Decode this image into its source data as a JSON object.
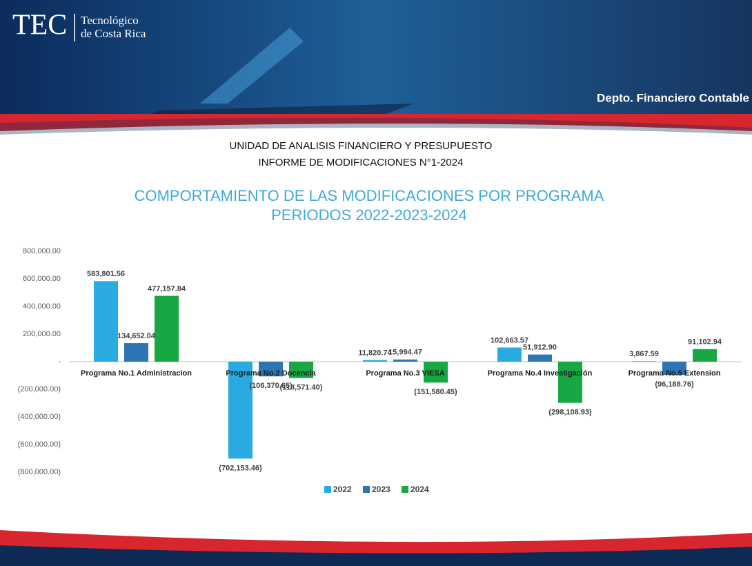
{
  "header": {
    "logo": "TEC",
    "institution_line1": "Tecnológico",
    "institution_line2": "de Costa Rica",
    "department": "Depto. Financiero Contable",
    "report_unit": "UNIDAD DE ANALISIS  FINANCIERO Y PRESUPUESTO",
    "report_name": "INFORME DE MODIFICACIONES N°1-2024"
  },
  "chart_data": {
    "type": "bar",
    "title": "COMPORTAMIENTO DE LAS MODIFICACIONES POR PROGRAMA",
    "subtitle": "PERIODOS 2022-2023-2024",
    "categories": [
      "Programa No.1 Administracion",
      "Programa No.2 Docencia",
      "Programa No.3 VIESA",
      "Programa No.4 Investigación",
      "Programa No.5 Extension"
    ],
    "series": [
      {
        "name": "2022",
        "color": "#29abe2",
        "values": [
          583801.56,
          -702153.46,
          11820.74,
          102663.57,
          3867.59
        ],
        "value_labels": [
          "583,801.56",
          "(702,153.46)",
          "11,820.74",
          "102,663.57",
          "3,867.59"
        ]
      },
      {
        "name": "2023",
        "color": "#2e75b6",
        "values": [
          134652.04,
          -106370.65,
          15994.47,
          51912.9,
          -96188.76
        ],
        "value_labels": [
          "134,652.04",
          "(106,370.65)",
          "15,994.47",
          "51,912.90",
          "(96,188.76)"
        ]
      },
      {
        "name": "2024",
        "color": "#17a844",
        "values": [
          477157.84,
          -118571.4,
          -151580.45,
          -298108.93,
          91102.94
        ],
        "value_labels": [
          "477,157.84",
          "(118,571.40)",
          "(151,580.45)",
          "(298,108.93)",
          "91,102.94"
        ]
      }
    ],
    "ylim": [
      -800000,
      800000
    ],
    "yticks": [
      {
        "value": -800000,
        "label": "(800,000.00)"
      },
      {
        "value": -600000,
        "label": "(600,000.00)"
      },
      {
        "value": -400000,
        "label": "(400,000.00)"
      },
      {
        "value": -200000,
        "label": "(200,000.00)"
      },
      {
        "value": 0,
        "label": "-"
      },
      {
        "value": 200000,
        "label": "200,000.00"
      },
      {
        "value": 400000,
        "label": "400,000.00"
      },
      {
        "value": 600000,
        "label": "600,000.00"
      },
      {
        "value": 800000,
        "label": "800,000.00"
      }
    ],
    "legend": "bottom"
  }
}
